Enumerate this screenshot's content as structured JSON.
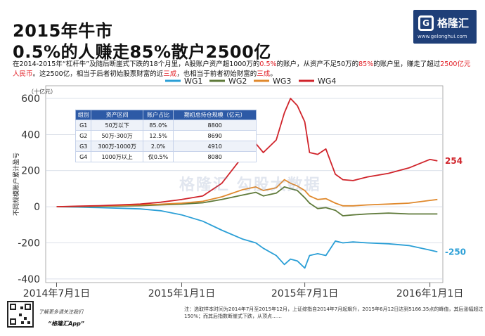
{
  "header": {
    "title_line1": "2015年牛市",
    "title_line2": "0.5%的人赚走85%散户2500亿",
    "logo_text": "格隆汇",
    "logo_url": "www.gelonghui.com"
  },
  "description": {
    "seg1": "在2014-2015年“杠杆牛”及随后断崖式下跌的18个月里，A股账户资产超1000万的",
    "seg2": "0.5%",
    "seg3": "的账户，从资产不足50万的",
    "seg4": "85%",
    "seg5": "的账户里，赚走了超过",
    "seg6": "2500亿元人民币",
    "seg7": "。这2500亿，相当于后者初始股票财富的近",
    "seg8": "三成",
    "seg9": "，也相当于前者初始财富的",
    "seg10": "三成",
    "seg11": "。"
  },
  "table": {
    "headers": [
      "组别",
      "资产区间",
      "账户占比",
      "期初总持仓规模（亿元）"
    ],
    "rows": [
      [
        "G1",
        "50万以下",
        "85.0%",
        "8800"
      ],
      [
        "G2",
        "50万-300万",
        "12.5%",
        "8690"
      ],
      [
        "G3",
        "300万-1000万",
        "2.0%",
        "4910"
      ],
      [
        "G4",
        "1000万以上",
        "仅0.5%",
        "8080"
      ]
    ]
  },
  "watermark": "格隆汇  勾股大数据",
  "footer": {
    "qr_caption": "了解更多请关注我们",
    "app_name": "“格隆汇App”",
    "note": "注：选取样本时间为2014年7月至2015年12月，上证综指自2014年7月起飙升，2015年6月12日达到5166.35点的峰值，其后涨幅超过150%；而其后指数断崖式下跌，从顶点……"
  },
  "colors": {
    "brand": "#1f3f78",
    "highlight": "#e21f26",
    "WG1": "#2b9fd6",
    "WG2": "#5f7a3a",
    "WG3": "#e0892d",
    "WG4": "#d0242b"
  },
  "chart_data": {
    "type": "line",
    "ylabel": "不同规模账户累计盈亏",
    "yunit": "（十亿元）",
    "ylim": [
      -420,
      670
    ],
    "yticks": [
      -400,
      -200,
      0,
      200,
      400,
      600
    ],
    "xlim": [
      "2014-06-15",
      "2016-01-20"
    ],
    "xticks": [
      "2014-07-01",
      "2015-01-01",
      "2015-07-01",
      "2016-01-01"
    ],
    "xtick_labels": [
      "2014年7月1日",
      "2015年1月1日",
      "2015年7月1日",
      "2016年1月1日"
    ],
    "legend_position": "top",
    "grid": "horizontal",
    "end_labels": [
      {
        "series": "WG4",
        "value": "254"
      },
      {
        "series": "WG1",
        "value": "-250"
      }
    ],
    "series": [
      {
        "name": "WG1",
        "x": [
          "2014-07-01",
          "2014-08-01",
          "2014-09-01",
          "2014-10-01",
          "2014-11-01",
          "2014-12-01",
          "2015-01-01",
          "2015-02-01",
          "2015-03-01",
          "2015-04-01",
          "2015-04-20",
          "2015-05-01",
          "2015-05-20",
          "2015-06-01",
          "2015-06-10",
          "2015-06-20",
          "2015-07-01",
          "2015-07-08",
          "2015-07-20",
          "2015-08-01",
          "2015-08-15",
          "2015-08-26",
          "2015-09-10",
          "2015-10-01",
          "2015-11-01",
          "2015-12-01",
          "2016-01-01",
          "2016-01-12"
        ],
        "y": [
          0,
          -2,
          -5,
          -8,
          -12,
          -22,
          -45,
          -80,
          -130,
          -180,
          -200,
          -230,
          -270,
          -320,
          -290,
          -300,
          -340,
          -270,
          -260,
          -270,
          -190,
          -200,
          -195,
          -200,
          -205,
          -215,
          -240,
          -250
        ]
      },
      {
        "name": "WG2",
        "x": [
          "2014-07-01",
          "2014-08-01",
          "2014-09-01",
          "2014-10-01",
          "2014-11-01",
          "2014-12-01",
          "2015-01-01",
          "2015-02-01",
          "2015-03-01",
          "2015-04-01",
          "2015-04-20",
          "2015-05-01",
          "2015-05-20",
          "2015-06-01",
          "2015-06-10",
          "2015-06-20",
          "2015-07-01",
          "2015-07-08",
          "2015-07-20",
          "2015-08-01",
          "2015-08-15",
          "2015-08-26",
          "2015-09-10",
          "2015-10-01",
          "2015-11-01",
          "2015-12-01",
          "2016-01-01",
          "2016-01-12"
        ],
        "y": [
          0,
          1,
          2,
          4,
          6,
          10,
          15,
          22,
          40,
          65,
          80,
          60,
          75,
          110,
          100,
          90,
          50,
          20,
          -10,
          -5,
          -20,
          -50,
          -45,
          -40,
          -35,
          -40,
          -40,
          -40
        ]
      },
      {
        "name": "WG3",
        "x": [
          "2014-07-01",
          "2014-08-01",
          "2014-09-01",
          "2014-10-01",
          "2014-11-01",
          "2014-12-01",
          "2015-01-01",
          "2015-02-01",
          "2015-03-01",
          "2015-04-01",
          "2015-04-20",
          "2015-05-01",
          "2015-05-20",
          "2015-06-01",
          "2015-06-10",
          "2015-06-20",
          "2015-07-01",
          "2015-07-08",
          "2015-07-20",
          "2015-08-01",
          "2015-08-15",
          "2015-08-26",
          "2015-09-10",
          "2015-10-01",
          "2015-11-01",
          "2015-12-01",
          "2016-01-01",
          "2016-01-12"
        ],
        "y": [
          0,
          2,
          4,
          7,
          10,
          14,
          20,
          30,
          55,
          95,
          110,
          90,
          105,
          150,
          130,
          115,
          90,
          60,
          40,
          45,
          20,
          5,
          5,
          10,
          15,
          20,
          35,
          40
        ]
      },
      {
        "name": "WG4",
        "x": [
          "2014-07-01",
          "2014-08-01",
          "2014-09-01",
          "2014-10-01",
          "2014-11-01",
          "2014-12-01",
          "2015-01-01",
          "2015-02-01",
          "2015-03-01",
          "2015-04-01",
          "2015-04-20",
          "2015-05-01",
          "2015-05-20",
          "2015-06-01",
          "2015-06-10",
          "2015-06-20",
          "2015-07-01",
          "2015-07-08",
          "2015-07-20",
          "2015-08-01",
          "2015-08-15",
          "2015-08-26",
          "2015-09-10",
          "2015-10-01",
          "2015-11-01",
          "2015-12-01",
          "2016-01-01",
          "2016-01-12"
        ],
        "y": [
          0,
          3,
          6,
          10,
          15,
          25,
          40,
          60,
          130,
          280,
          350,
          300,
          370,
          520,
          600,
          560,
          470,
          300,
          290,
          320,
          180,
          150,
          145,
          165,
          185,
          215,
          262,
          254
        ]
      }
    ]
  }
}
